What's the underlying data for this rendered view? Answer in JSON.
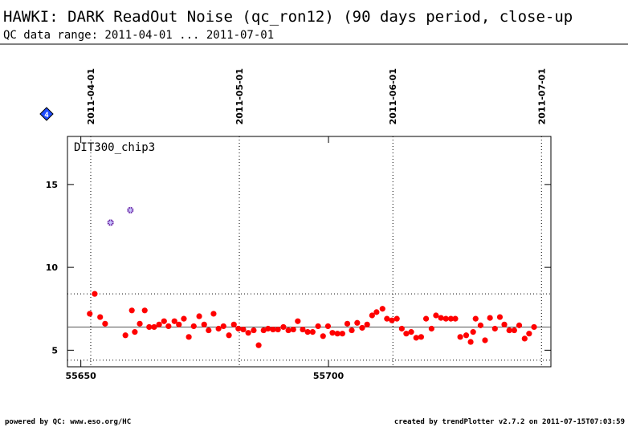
{
  "chart_data": {
    "type": "scatter",
    "title": "HAWKI: DARK ReadOut Noise (qc_ron12) (90 days period, close-up",
    "subtitle": "QC data range: 2011-04-01 ... 2011-07-01",
    "panel_label": "DIT300_chip3",
    "badge": "4",
    "footer_left": "powered by QC: www.eso.org/HC",
    "footer_right": "created by trendPlotter v2.7.2 on 2011-07-15T07:03:59",
    "xlim": [
      55647.3,
      55744.9
    ],
    "ylim": [
      4,
      17.9
    ],
    "xticks": [
      55650,
      55700
    ],
    "yticks": [
      5,
      10,
      15
    ],
    "date_markers": [
      {
        "value": 55652,
        "label": "2011-04-01"
      },
      {
        "value": 55682,
        "label": "2011-05-01"
      },
      {
        "value": 55713,
        "label": "2011-06-01"
      },
      {
        "value": 55743,
        "label": "2011-07-01"
      }
    ],
    "hlines": [
      {
        "value": 6.4,
        "style": "solid"
      },
      {
        "value": 8.4,
        "style": "dotted"
      },
      {
        "value": 4.4,
        "style": "dotted"
      }
    ],
    "series": [
      {
        "color": "#ff0000",
        "marker": "dot",
        "x": [
          55651.8,
          55652.8,
          55653.9,
          55654.9,
          55659.0,
          55660.3,
          55660.9,
          55661.9,
          55662.9,
          55663.8,
          55664.8,
          55665.8,
          55666.8,
          55667.7,
          55668.9,
          55669.8,
          55670.8,
          55671.8,
          55672.8,
          55673.9,
          55674.9,
          55675.8,
          55676.8,
          55677.8,
          55678.8,
          55679.9,
          55680.9,
          55681.8,
          55682.8,
          55683.8,
          55684.9,
          55685.9,
          55686.9,
          55687.8,
          55688.8,
          55689.8,
          55690.9,
          55691.9,
          55692.9,
          55693.8,
          55694.8,
          55695.8,
          55696.8,
          55697.9,
          55698.9,
          55699.9,
          55700.8,
          55701.8,
          55702.8,
          55703.8,
          55704.7,
          55705.8,
          55706.8,
          55707.8,
          55708.8,
          55709.7,
          55710.9,
          55711.8,
          55712.8,
          55713.8,
          55714.8,
          55715.7,
          55716.7,
          55717.7,
          55718.7,
          55719.7,
          55720.8,
          55721.7,
          55722.7,
          55723.7,
          55724.7,
          55725.6,
          55726.6,
          55727.8,
          55728.7,
          55729.2,
          55729.7,
          55730.7,
          55731.6,
          55732.6,
          55733.6,
          55734.6,
          55735.5,
          55736.5,
          55737.5,
          55738.5,
          55739.6,
          55740.5,
          55741.5
        ],
        "values": [
          7.2,
          8.4,
          7.0,
          6.6,
          5.9,
          7.4,
          6.1,
          6.6,
          7.4,
          6.4,
          6.4,
          6.55,
          6.75,
          6.45,
          6.75,
          6.55,
          6.9,
          5.8,
          6.45,
          7.05,
          6.55,
          6.2,
          7.2,
          6.3,
          6.45,
          5.9,
          6.55,
          6.3,
          6.25,
          6.05,
          6.2,
          5.3,
          6.2,
          6.3,
          6.25,
          6.25,
          6.4,
          6.2,
          6.25,
          6.75,
          6.25,
          6.1,
          6.1,
          6.45,
          5.85,
          6.45,
          6.05,
          6.0,
          6.0,
          6.6,
          6.2,
          6.65,
          6.35,
          6.55,
          7.1,
          7.3,
          7.5,
          6.9,
          6.8,
          6.9,
          6.3,
          6.0,
          6.1,
          5.75,
          5.8,
          6.9,
          6.3,
          7.1,
          6.95,
          6.9,
          6.9,
          6.9,
          5.8,
          5.9,
          5.5,
          6.1,
          6.9,
          6.5,
          5.6,
          6.95,
          6.3,
          7.0,
          6.55,
          6.2,
          6.2,
          6.5,
          5.7,
          6.0,
          6.4
        ]
      },
      {
        "color": "#6a1b9a",
        "marker": "star",
        "x": [
          55656.0,
          55660.0
        ],
        "values": [
          12.7,
          13.45
        ]
      }
    ]
  }
}
